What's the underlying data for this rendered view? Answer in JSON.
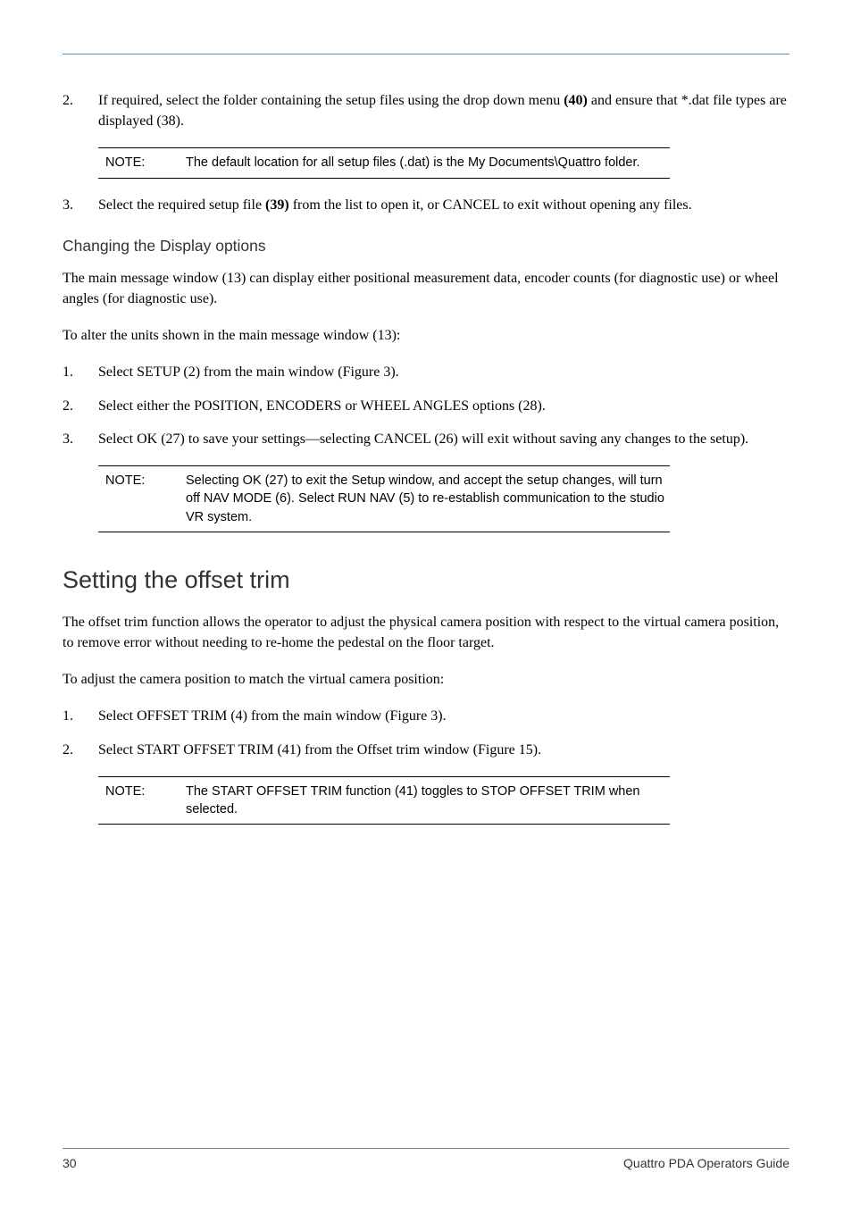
{
  "colors": {
    "rule_blue": "#6d8aa6",
    "text_black": "#000000",
    "heading_gray": "#333333",
    "background": "#ffffff"
  },
  "typography": {
    "body_family": "Times New Roman",
    "heading_family": "Verdana",
    "note_family": "Arial",
    "body_size_pt": 12,
    "h1_size_pt": 20,
    "h2_size_pt": 13,
    "note_size_pt": 11
  },
  "list1": {
    "item2": {
      "num": "2.",
      "text_before": "If required, select the folder containing the setup files using the drop down menu ",
      "bold": "(40)",
      "text_after": " and ensure that *.dat file types are displayed (38)."
    },
    "item3": {
      "num": "3.",
      "text_before": "Select the required setup file ",
      "bold": "(39)",
      "text_after": " from the list to open it, or CANCEL to exit without opening any files."
    }
  },
  "note1": {
    "label": "NOTE:",
    "text": "The default location for all setup files (.dat) is the My Documents\\Quattro folder."
  },
  "section1": {
    "heading": "Changing the Display options",
    "p1": "The main message window (13) can display either positional measurement data, encoder counts (for diagnostic use) or wheel angles (for diagnostic use).",
    "p2": "To alter the units shown in the main message window (13):",
    "items": {
      "i1": {
        "num": "1.",
        "text": "Select SETUP (2) from the main window (Figure 3)."
      },
      "i2": {
        "num": "2.",
        "text": "Select either the POSITION, ENCODERS or WHEEL ANGLES options (28)."
      },
      "i3": {
        "num": "3.",
        "text": "Select OK (27) to save your settings—selecting CANCEL (26) will exit without saving any changes to the setup)."
      }
    }
  },
  "note2": {
    "label": "NOTE:",
    "text": "Selecting OK (27) to exit the Setup window, and accept the setup changes, will turn off NAV MODE (6). Select RUN NAV (5) to re-establish communication to the studio VR system."
  },
  "section2": {
    "heading": "Setting the offset trim",
    "p1": "The offset trim function allows the operator to adjust the physical camera position with respect to the virtual camera position, to remove error without needing to re-home the pedestal on the floor target.",
    "p2": "To adjust the camera position to match the virtual camera position:",
    "items": {
      "i1": {
        "num": "1.",
        "text": "Select OFFSET TRIM (4) from the main window (Figure 3)."
      },
      "i2": {
        "num": "2.",
        "text": "Select START OFFSET TRIM (41) from the Offset trim window (Figure 15)."
      }
    }
  },
  "note3": {
    "label": "NOTE:",
    "text": "The START OFFSET TRIM function (41) toggles to STOP OFFSET TRIM when selected."
  },
  "footer": {
    "page_num": "30",
    "title": "Quattro PDA Operators Guide"
  }
}
